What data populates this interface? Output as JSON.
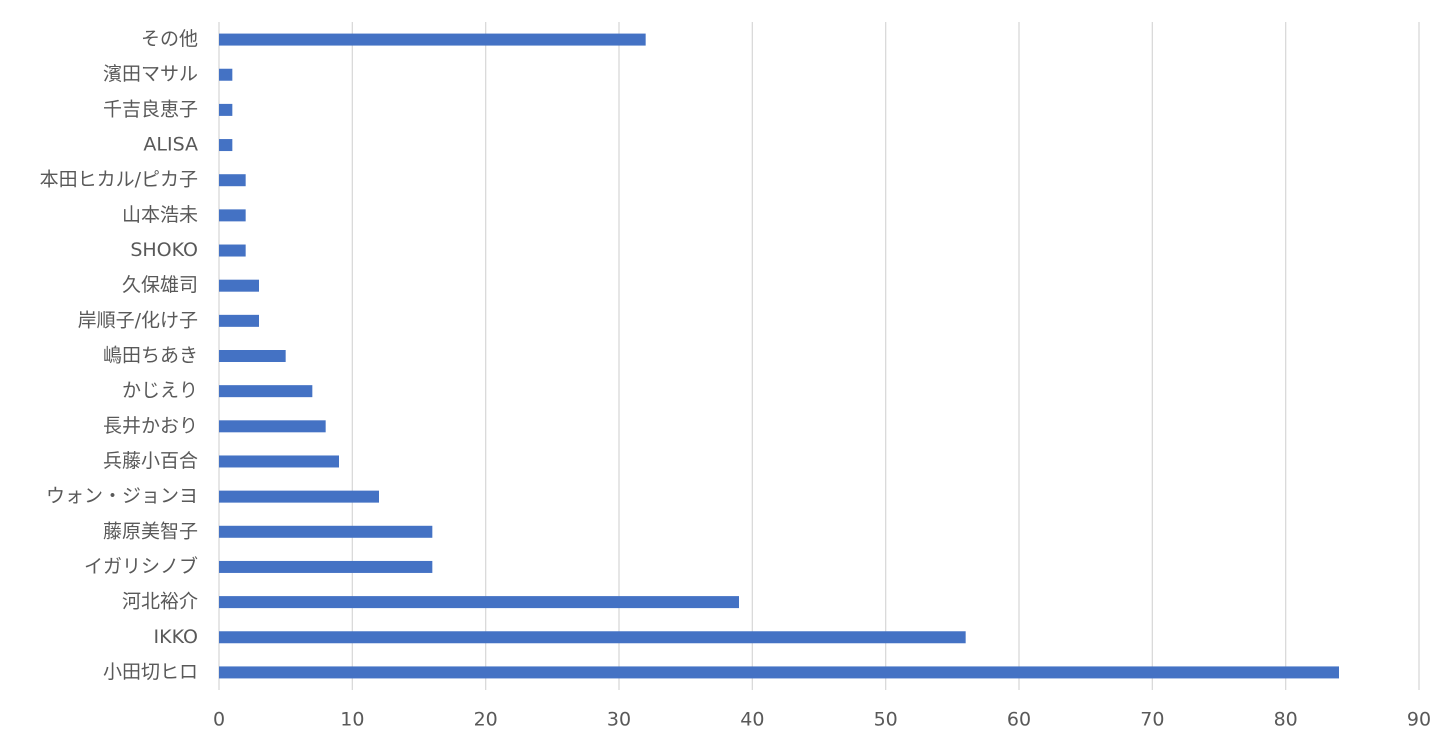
{
  "chart_data": {
    "type": "barh",
    "categories": [
      "小田切ヒロ",
      "IKKO",
      "河北裕介",
      "イガリシノブ",
      "藤原美智子",
      "ウォン・ジョンヨ",
      "兵藤小百合",
      "長井かおり",
      "かじえり",
      "嶋田ちあき",
      "岸順子/化け子",
      "久保雄司",
      "SHOKO",
      "山本浩未",
      "本田ヒカル/ピカ子",
      "ALISA",
      "千吉良恵子",
      "濱田マサル",
      "その他"
    ],
    "values": [
      84,
      56,
      39,
      16,
      16,
      12,
      9,
      8,
      7,
      5,
      3,
      3,
      2,
      2,
      2,
      1,
      1,
      1,
      32
    ],
    "color": "#4472c4",
    "xlim": [
      0,
      90
    ],
    "xticks": [
      0,
      10,
      20,
      30,
      40,
      50,
      60,
      70,
      80,
      90
    ],
    "grid": true
  }
}
